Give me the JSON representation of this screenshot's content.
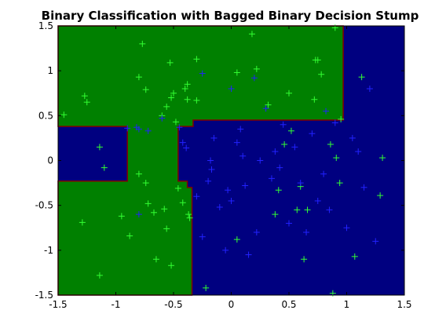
{
  "chart_data": {
    "type": "scatter",
    "title": "Binary Classification with Bagged Binary Decision Stump",
    "xlabel": "",
    "ylabel": "",
    "xlim": [
      -1.5,
      1.5
    ],
    "ylim": [
      -1.5,
      1.5
    ],
    "grid": false,
    "xticks": [
      -1.5,
      -1,
      -0.5,
      0,
      0.5,
      1,
      1.5
    ],
    "yticks": [
      -1.5,
      -1,
      -0.5,
      0,
      0.5,
      1,
      1.5
    ],
    "xtick_labels": [
      "-1.5",
      "-1",
      "-0.5",
      "0",
      "0.5",
      "1",
      "1.5"
    ],
    "ytick_labels": [
      "-1.5",
      "-1",
      "-0.5",
      "0",
      "0.5",
      "1",
      "1.5"
    ],
    "colors": {
      "region_class_green": "#008000",
      "region_class_blue": "#000080",
      "boundary": "#800000",
      "points_green": "#33ff33",
      "points_blue": "#2222ff"
    },
    "regions": {
      "class_green": [
        [
          [
            -1.5,
            1.5
          ],
          [
            0.97,
            1.5
          ],
          [
            0.97,
            0.45
          ],
          [
            -0.33,
            0.45
          ],
          [
            -0.33,
            0.38
          ],
          [
            -0.46,
            0.38
          ],
          [
            -0.46,
            -0.23
          ],
          [
            -0.38,
            -0.23
          ],
          [
            -0.38,
            -0.3
          ],
          [
            -0.34,
            -0.3
          ],
          [
            -0.34,
            -1.5
          ],
          [
            -1.5,
            -1.5
          ],
          [
            -1.5,
            -0.23
          ],
          [
            -0.9,
            -0.23
          ],
          [
            -0.9,
            0.38
          ],
          [
            -1.5,
            0.38
          ]
        ]
      ]
    },
    "series": [
      {
        "marker": "+",
        "points": [
          [
            -1.45,
            0.51
          ],
          [
            -1.27,
            0.72
          ],
          [
            -1.25,
            0.65
          ],
          [
            -1.29,
            -0.69
          ],
          [
            -1.14,
            -1.28
          ],
          [
            -1.14,
            0.15
          ],
          [
            -1.1,
            -0.08
          ],
          [
            -0.95,
            -0.62
          ],
          [
            -0.88,
            -0.84
          ],
          [
            -0.8,
            -0.15
          ],
          [
            -0.8,
            0.93
          ],
          [
            -0.77,
            1.3
          ],
          [
            -0.74,
            0.79
          ],
          [
            -0.74,
            -0.25
          ],
          [
            -0.72,
            -0.48
          ],
          [
            -0.67,
            -0.58
          ],
          [
            -0.65,
            -1.1
          ],
          [
            -0.6,
            0.5
          ],
          [
            -0.58,
            -0.54
          ],
          [
            -0.56,
            0.6
          ],
          [
            -0.56,
            -0.76
          ],
          [
            -0.53,
            1.09
          ],
          [
            -0.52,
            -1.17
          ],
          [
            -0.52,
            0.7
          ],
          [
            -0.5,
            0.75
          ],
          [
            -0.48,
            0.43
          ],
          [
            -0.46,
            -0.31
          ],
          [
            -0.42,
            -0.47
          ],
          [
            -0.4,
            0.8
          ],
          [
            -0.38,
            0.85
          ],
          [
            -0.38,
            0.68
          ],
          [
            -0.37,
            -0.6
          ],
          [
            -0.36,
            -0.64
          ],
          [
            -0.3,
            1.13
          ],
          [
            -0.3,
            0.67
          ],
          [
            -0.22,
            -1.42
          ],
          [
            0.05,
            0.98
          ],
          [
            0.05,
            -0.88
          ],
          [
            0.18,
            1.41
          ],
          [
            0.22,
            1.02
          ],
          [
            0.32,
            0.62
          ],
          [
            0.41,
            -0.33
          ],
          [
            0.38,
            -0.6
          ],
          [
            0.46,
            0.18
          ],
          [
            0.5,
            0.75
          ],
          [
            0.52,
            0.33
          ],
          [
            0.57,
            -0.55
          ],
          [
            0.6,
            -0.29
          ],
          [
            0.63,
            -1.1
          ],
          [
            0.66,
            -0.55
          ],
          [
            0.72,
            0.68
          ],
          [
            0.73,
            1.12
          ],
          [
            0.75,
            1.12
          ],
          [
            0.78,
            0.96
          ],
          [
            0.86,
            0.18
          ],
          [
            0.88,
            -1.48
          ],
          [
            0.9,
            1.48
          ],
          [
            0.91,
            0.03
          ],
          [
            0.94,
            -0.25
          ],
          [
            0.95,
            0.46
          ],
          [
            1.07,
            -1.07
          ],
          [
            1.13,
            0.93
          ],
          [
            1.29,
            -0.39
          ],
          [
            1.31,
            0.03
          ]
        ]
      },
      {
        "marker": "+",
        "points": [
          [
            -0.9,
            0.36
          ],
          [
            -0.82,
            0.37
          ],
          [
            -0.8,
            0.35
          ],
          [
            -0.8,
            -0.6
          ],
          [
            -0.72,
            0.33
          ],
          [
            -0.6,
            0.47
          ],
          [
            -0.45,
            0.37
          ],
          [
            -0.42,
            0.2
          ],
          [
            -0.39,
            0.14
          ],
          [
            -0.3,
            -0.4
          ],
          [
            -0.25,
            0.97
          ],
          [
            -0.25,
            -0.85
          ],
          [
            -0.2,
            -0.23
          ],
          [
            -0.18,
            0.0
          ],
          [
            -0.17,
            -0.1
          ],
          [
            -0.15,
            0.25
          ],
          [
            -0.1,
            -0.52
          ],
          [
            -0.05,
            -1.0
          ],
          [
            -0.03,
            -0.33
          ],
          [
            0.0,
            0.8
          ],
          [
            0.0,
            -0.45
          ],
          [
            0.05,
            0.2
          ],
          [
            0.08,
            0.35
          ],
          [
            0.1,
            0.05
          ],
          [
            0.12,
            -0.28
          ],
          [
            0.15,
            -1.05
          ],
          [
            0.2,
            0.92
          ],
          [
            0.22,
            -0.8
          ],
          [
            0.25,
            0.0
          ],
          [
            0.3,
            0.58
          ],
          [
            0.35,
            -0.2
          ],
          [
            0.38,
            0.1
          ],
          [
            0.42,
            -0.08
          ],
          [
            0.45,
            0.4
          ],
          [
            0.5,
            -0.7
          ],
          [
            0.55,
            0.15
          ],
          [
            0.6,
            -0.25
          ],
          [
            0.65,
            -0.8
          ],
          [
            0.7,
            0.3
          ],
          [
            0.75,
            -0.45
          ],
          [
            0.8,
            -0.15
          ],
          [
            0.82,
            0.55
          ],
          [
            0.85,
            -0.55
          ],
          [
            0.9,
            0.42
          ],
          [
            1.0,
            -0.75
          ],
          [
            1.05,
            0.25
          ],
          [
            1.1,
            0.1
          ],
          [
            1.15,
            -0.3
          ],
          [
            1.2,
            0.8
          ],
          [
            1.25,
            -0.9
          ]
        ]
      }
    ]
  }
}
